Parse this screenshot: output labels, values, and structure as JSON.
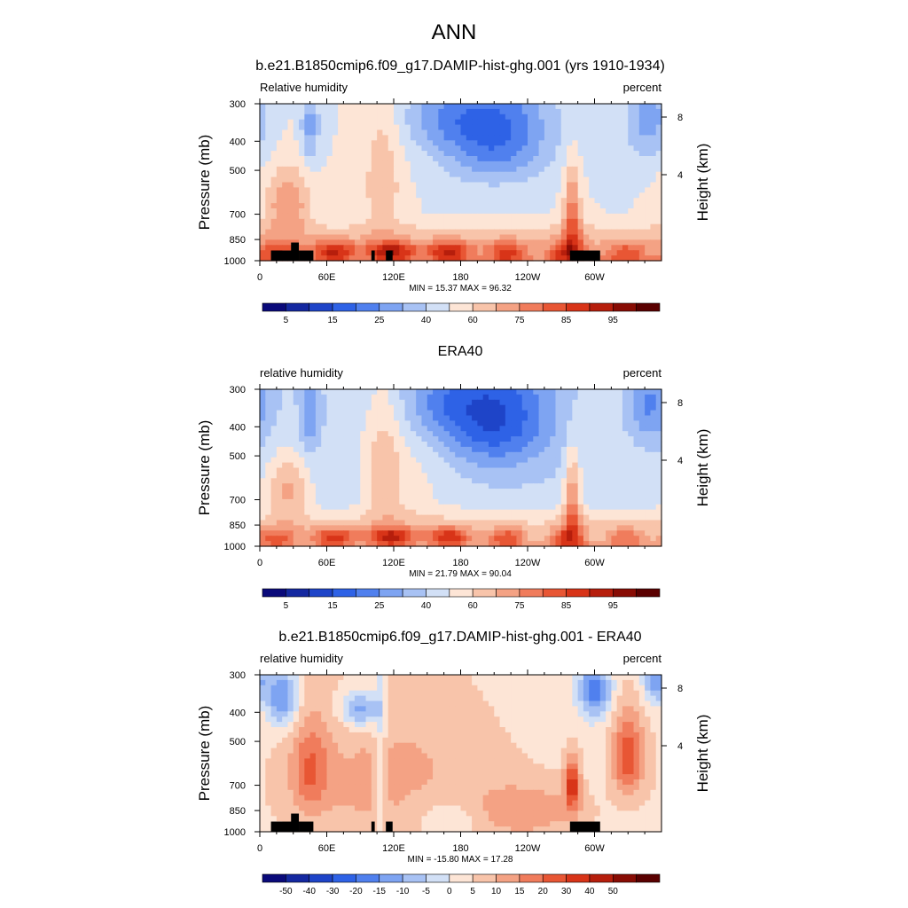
{
  "figure_title": "ANN",
  "chart_data": [
    {
      "type": "heatmap",
      "title": "b.e21.B1850cmip6.f09_g17.DAMIP-hist-ghg.001 (yrs 1910-1934)",
      "variable_label": "Relative humidity",
      "units_label": "percent",
      "ylabel": "Pressure (mb)",
      "ylabel_right": "Height (km)",
      "x_ticks": [
        "0",
        "60E",
        "120E",
        "180",
        "120W",
        "60W"
      ],
      "y_ticks": [
        "300",
        "400",
        "500",
        "700",
        "850",
        "1000"
      ],
      "y_right_ticks": [
        "8",
        "4"
      ],
      "min": 15.37,
      "max": 96.32,
      "stats_text": "MIN =  15.37  MAX =  96.32",
      "colorbar_labels": [
        "5",
        "15",
        "25",
        "40",
        "60",
        "75",
        "85",
        "95"
      ],
      "colormap": [
        "#0a0a7a",
        "#1428a0",
        "#1e44c8",
        "#2e62e6",
        "#5080ee",
        "#7ea4f2",
        "#a8c2f4",
        "#d2e0f6",
        "#fde5d6",
        "#f8c4aa",
        "#f4a284",
        "#f07c5c",
        "#e85634",
        "#d83418",
        "#b61e0c",
        "#880c04",
        "#5a0000"
      ]
    },
    {
      "type": "heatmap",
      "title": "ERA40",
      "variable_label": "relative humidity",
      "units_label": "percent",
      "ylabel": "Pressure (mb)",
      "ylabel_right": "Height (km)",
      "x_ticks": [
        "0",
        "60E",
        "120E",
        "180",
        "120W",
        "60W"
      ],
      "y_ticks": [
        "300",
        "400",
        "500",
        "700",
        "850",
        "1000"
      ],
      "y_right_ticks": [
        "8",
        "4"
      ],
      "min": 21.79,
      "max": 90.04,
      "stats_text": "MIN =  21.79  MAX =  90.04",
      "colorbar_labels": [
        "5",
        "15",
        "25",
        "40",
        "60",
        "75",
        "85",
        "95"
      ],
      "colormap": [
        "#0a0a7a",
        "#1428a0",
        "#1e44c8",
        "#2e62e6",
        "#5080ee",
        "#7ea4f2",
        "#a8c2f4",
        "#d2e0f6",
        "#fde5d6",
        "#f8c4aa",
        "#f4a284",
        "#f07c5c",
        "#e85634",
        "#d83418",
        "#b61e0c",
        "#880c04",
        "#5a0000"
      ]
    },
    {
      "type": "heatmap",
      "title": "b.e21.B1850cmip6.f09_g17.DAMIP-hist-ghg.001 - ERA40",
      "variable_label": "relative humidity",
      "units_label": "percent",
      "ylabel": "Pressure (mb)",
      "ylabel_right": "Height (km)",
      "x_ticks": [
        "0",
        "60E",
        "120E",
        "180",
        "120W",
        "60W"
      ],
      "y_ticks": [
        "300",
        "400",
        "500",
        "700",
        "850",
        "1000"
      ],
      "y_right_ticks": [
        "8",
        "4"
      ],
      "min": -15.8,
      "max": 17.28,
      "stats_text": "MIN = -15.80  MAX =  17.28",
      "colorbar_labels": [
        "-50",
        "-40",
        "-30",
        "-20",
        "-15",
        "-10",
        "-5",
        "0",
        "5",
        "10",
        "15",
        "20",
        "30",
        "40",
        "50"
      ],
      "colormap": [
        "#0a0a7a",
        "#1428a0",
        "#1e44c8",
        "#2e62e6",
        "#5080ee",
        "#7ea4f2",
        "#a8c2f4",
        "#d2e0f6",
        "#fde5d6",
        "#f8c4aa",
        "#f4a284",
        "#f07c5c",
        "#e85634",
        "#d83418",
        "#b61e0c",
        "#880c04",
        "#5a0000"
      ]
    }
  ]
}
